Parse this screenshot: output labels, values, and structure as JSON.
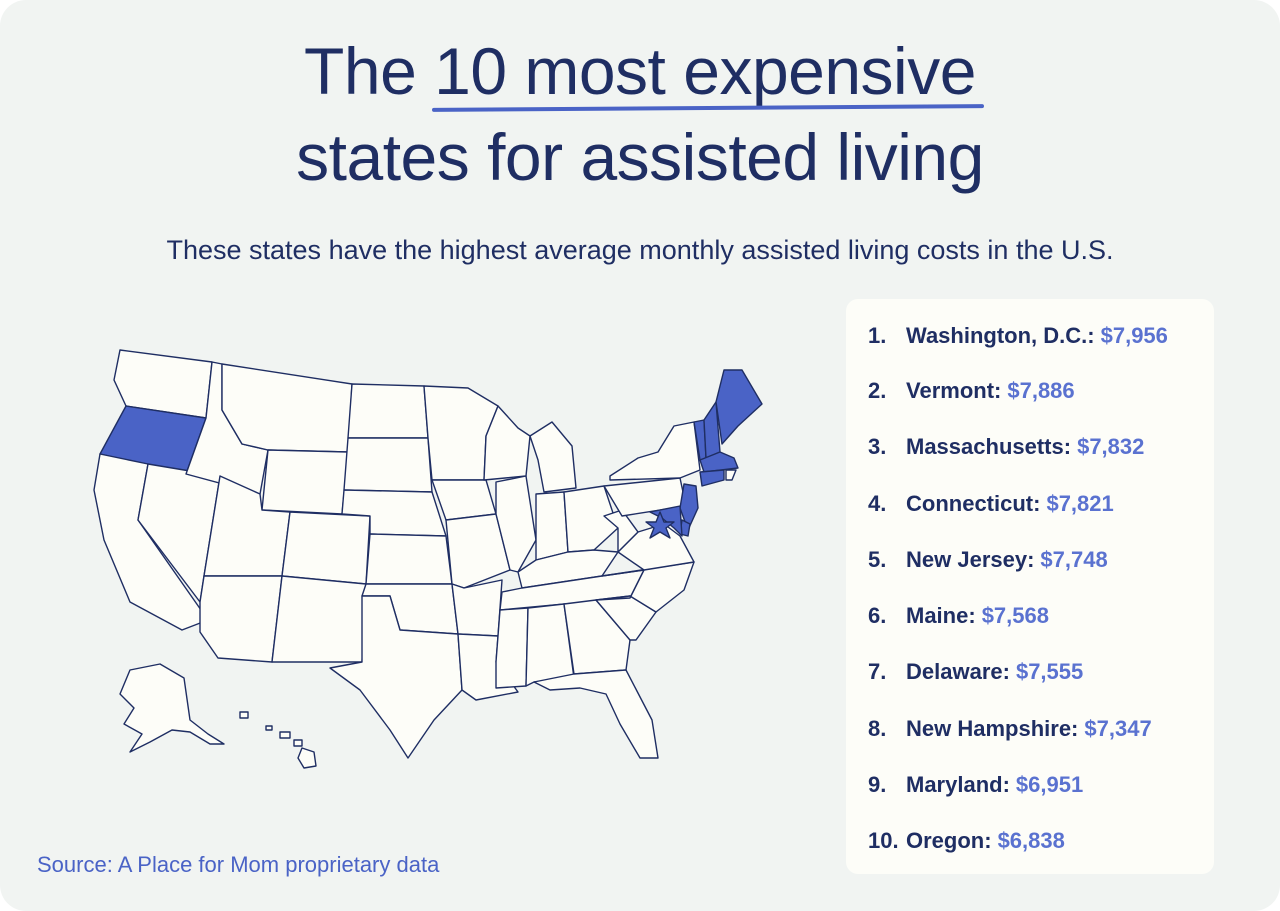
{
  "title": {
    "prefix": "The",
    "highlight": "10 most expensive",
    "line2": "states for assisted living"
  },
  "subtitle": "These states have the highest average monthly assisted living costs in the U.S.",
  "source": "Source: A Place for Mom proprietary data",
  "colors": {
    "background": "#f1f4f2",
    "navy": "#1f2e63",
    "highlight_state": "#4a63c6",
    "state_fill": "#fdfdf8",
    "state_stroke": "#1f2e63",
    "cost_text": "#5a72d0"
  },
  "map": {
    "highlighted_states": [
      "Washington, D.C.",
      "Vermont",
      "Massachusetts",
      "Connecticut",
      "New Jersey",
      "Maine",
      "Delaware",
      "New Hampshire",
      "Maryland",
      "Oregon"
    ]
  },
  "ranking": [
    {
      "num": "1.",
      "state": "Washington, D.C.:",
      "cost": "$7,956"
    },
    {
      "num": "2.",
      "state": "Vermont:",
      "cost": "$7,886"
    },
    {
      "num": "3.",
      "state": "Massachusetts:",
      "cost": "$7,832"
    },
    {
      "num": "4.",
      "state": "Connecticut:",
      "cost": "$7,821"
    },
    {
      "num": "5.",
      "state": "New Jersey:",
      "cost": "$7,748"
    },
    {
      "num": "6.",
      "state": "Maine:",
      "cost": "$7,568"
    },
    {
      "num": "7.",
      "state": "Delaware:",
      "cost": "$7,555"
    },
    {
      "num": "8.",
      "state": "New Hampshire:",
      "cost": "$7,347"
    },
    {
      "num": "9.",
      "state": "Maryland:",
      "cost": "$6,951"
    },
    {
      "num": "10.",
      "state": "Oregon:",
      "cost": "$6,838"
    }
  ]
}
